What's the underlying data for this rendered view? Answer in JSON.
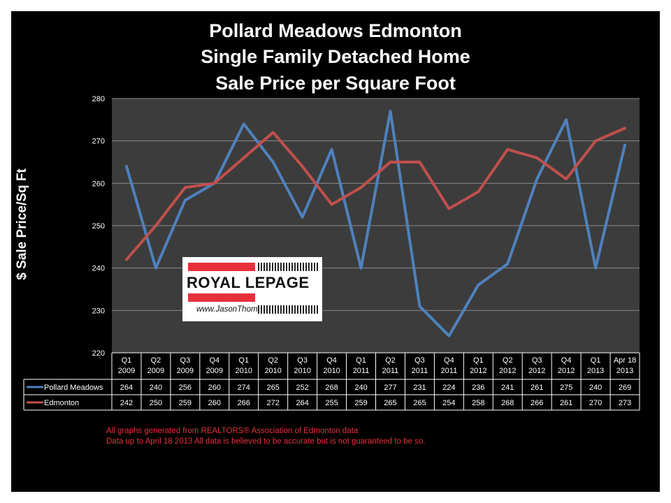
{
  "title": {
    "line1": "Pollard Meadows Edmonton",
    "line2": "Single Family Detached Home",
    "line3": "Sale Price per Square Foot"
  },
  "logo": {
    "brand": "ROYAL LEPAGE",
    "website": "www.JasonThomas.ca"
  },
  "notes": {
    "line1": "All graphs generated from REALTORS® Association of Edmonton data",
    "line2": "Data up to  April 18 2013  All data is believed to be accurate but is not guaranteed to be so."
  },
  "colors": {
    "background": "#000000",
    "plot_area": "#3c3c3c",
    "pollard": "#4f81bd",
    "edmonton": "#c0504d",
    "note_text": "#e8303d"
  },
  "chart_data": {
    "type": "line",
    "ylabel": "$ Sale Price/Sq Ft",
    "ylim": [
      220,
      280
    ],
    "yticks": [
      220,
      230,
      240,
      250,
      260,
      270,
      280
    ],
    "grid": true,
    "categories": [
      [
        "Q1",
        "2009"
      ],
      [
        "Q2",
        "2009"
      ],
      [
        "Q3",
        "2009"
      ],
      [
        "Q4",
        "2009"
      ],
      [
        "Q1",
        "2010"
      ],
      [
        "Q2",
        "2010"
      ],
      [
        "Q3",
        "2010"
      ],
      [
        "Q4",
        "2010"
      ],
      [
        "Q1",
        "2011"
      ],
      [
        "Q2",
        "2011"
      ],
      [
        "Q3",
        "2011"
      ],
      [
        "Q4",
        "2011"
      ],
      [
        "Q1",
        "2012"
      ],
      [
        "Q2",
        "2012"
      ],
      [
        "Q3",
        "2012"
      ],
      [
        "Q4",
        "2012"
      ],
      [
        "Q1",
        "2013"
      ],
      [
        "Apr 18",
        "2013"
      ]
    ],
    "series": [
      {
        "name": "Pollard Meadows",
        "color": "#4f81bd",
        "values": [
          264,
          240,
          256,
          260,
          274,
          265,
          252,
          268,
          240,
          277,
          231,
          224,
          236,
          241,
          261,
          275,
          240,
          269
        ]
      },
      {
        "name": "Edmonton",
        "color": "#c0504d",
        "values": [
          242,
          250,
          259,
          260,
          266,
          272,
          264,
          255,
          259,
          265,
          265,
          254,
          258,
          268,
          266,
          261,
          270,
          273
        ]
      }
    ]
  }
}
